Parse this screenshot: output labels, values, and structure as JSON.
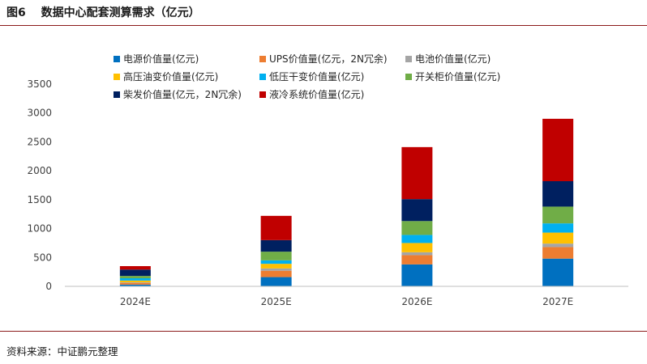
{
  "figure": {
    "number": "图6",
    "title": "数据中心配套测算需求（亿元）",
    "source": "资料来源：中证鹏元整理"
  },
  "chart_data": {
    "type": "bar",
    "stacked": true,
    "categories": [
      "2024E",
      "2025E",
      "2026E",
      "2027E"
    ],
    "ylim": [
      0,
      3500
    ],
    "yticks": [
      0,
      500,
      1000,
      1500,
      2000,
      2500,
      3000,
      3500
    ],
    "grid": false,
    "legend_position": "top",
    "series": [
      {
        "name": "电源价值量(亿元)",
        "color": "#0070C0",
        "values": [
          30,
          160,
          380,
          480
        ]
      },
      {
        "name": "UPS价值量(亿元，2N冗余)",
        "color": "#ED7D31",
        "values": [
          30,
          110,
          160,
          200
        ]
      },
      {
        "name": "电池价值量(亿元)",
        "color": "#A5A5A5",
        "values": [
          10,
          40,
          50,
          60
        ]
      },
      {
        "name": "高压油变价值量(亿元)",
        "color": "#FFC000",
        "values": [
          30,
          80,
          160,
          190
        ]
      },
      {
        "name": "低压干变价值量(亿元)",
        "color": "#00B0F0",
        "values": [
          40,
          60,
          140,
          160
        ]
      },
      {
        "name": "开关柜价值量(亿元)",
        "color": "#70AD47",
        "values": [
          40,
          150,
          240,
          290
        ]
      },
      {
        "name": "柴发价值量(亿元，2N冗余)",
        "color": "#002060",
        "values": [
          110,
          200,
          380,
          440
        ]
      },
      {
        "name": "液冷系统价值量(亿元)",
        "color": "#C00000",
        "values": [
          60,
          420,
          900,
          1080
        ]
      }
    ]
  }
}
